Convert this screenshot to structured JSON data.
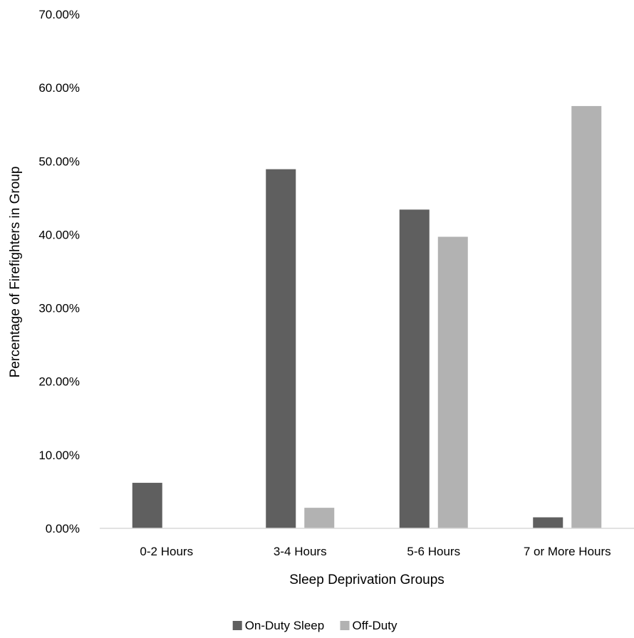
{
  "chart_data": {
    "type": "bar",
    "title": "",
    "xlabel": "Sleep Deprivation Groups",
    "ylabel": "Percentage of Firefighters in Group",
    "ylim": [
      0,
      70
    ],
    "ytick_step": 10,
    "ytick_labels": [
      "0.00%",
      "10.00%",
      "20.00%",
      "30.00%",
      "40.00%",
      "50.00%",
      "60.00%",
      "70.00%"
    ],
    "categories": [
      "0-2 Hours",
      "3-4 Hours",
      "5-6 Hours",
      "7 or More Hours"
    ],
    "series": [
      {
        "name": "On-Duty Sleep",
        "color": "#5f5f5f",
        "values": [
          6.2,
          48.9,
          43.4,
          1.5
        ]
      },
      {
        "name": "Off-Duty",
        "color": "#b2b2b2",
        "values": [
          0.0,
          2.8,
          39.7,
          57.5
        ]
      }
    ],
    "grid": false,
    "legend_position": "bottom"
  }
}
